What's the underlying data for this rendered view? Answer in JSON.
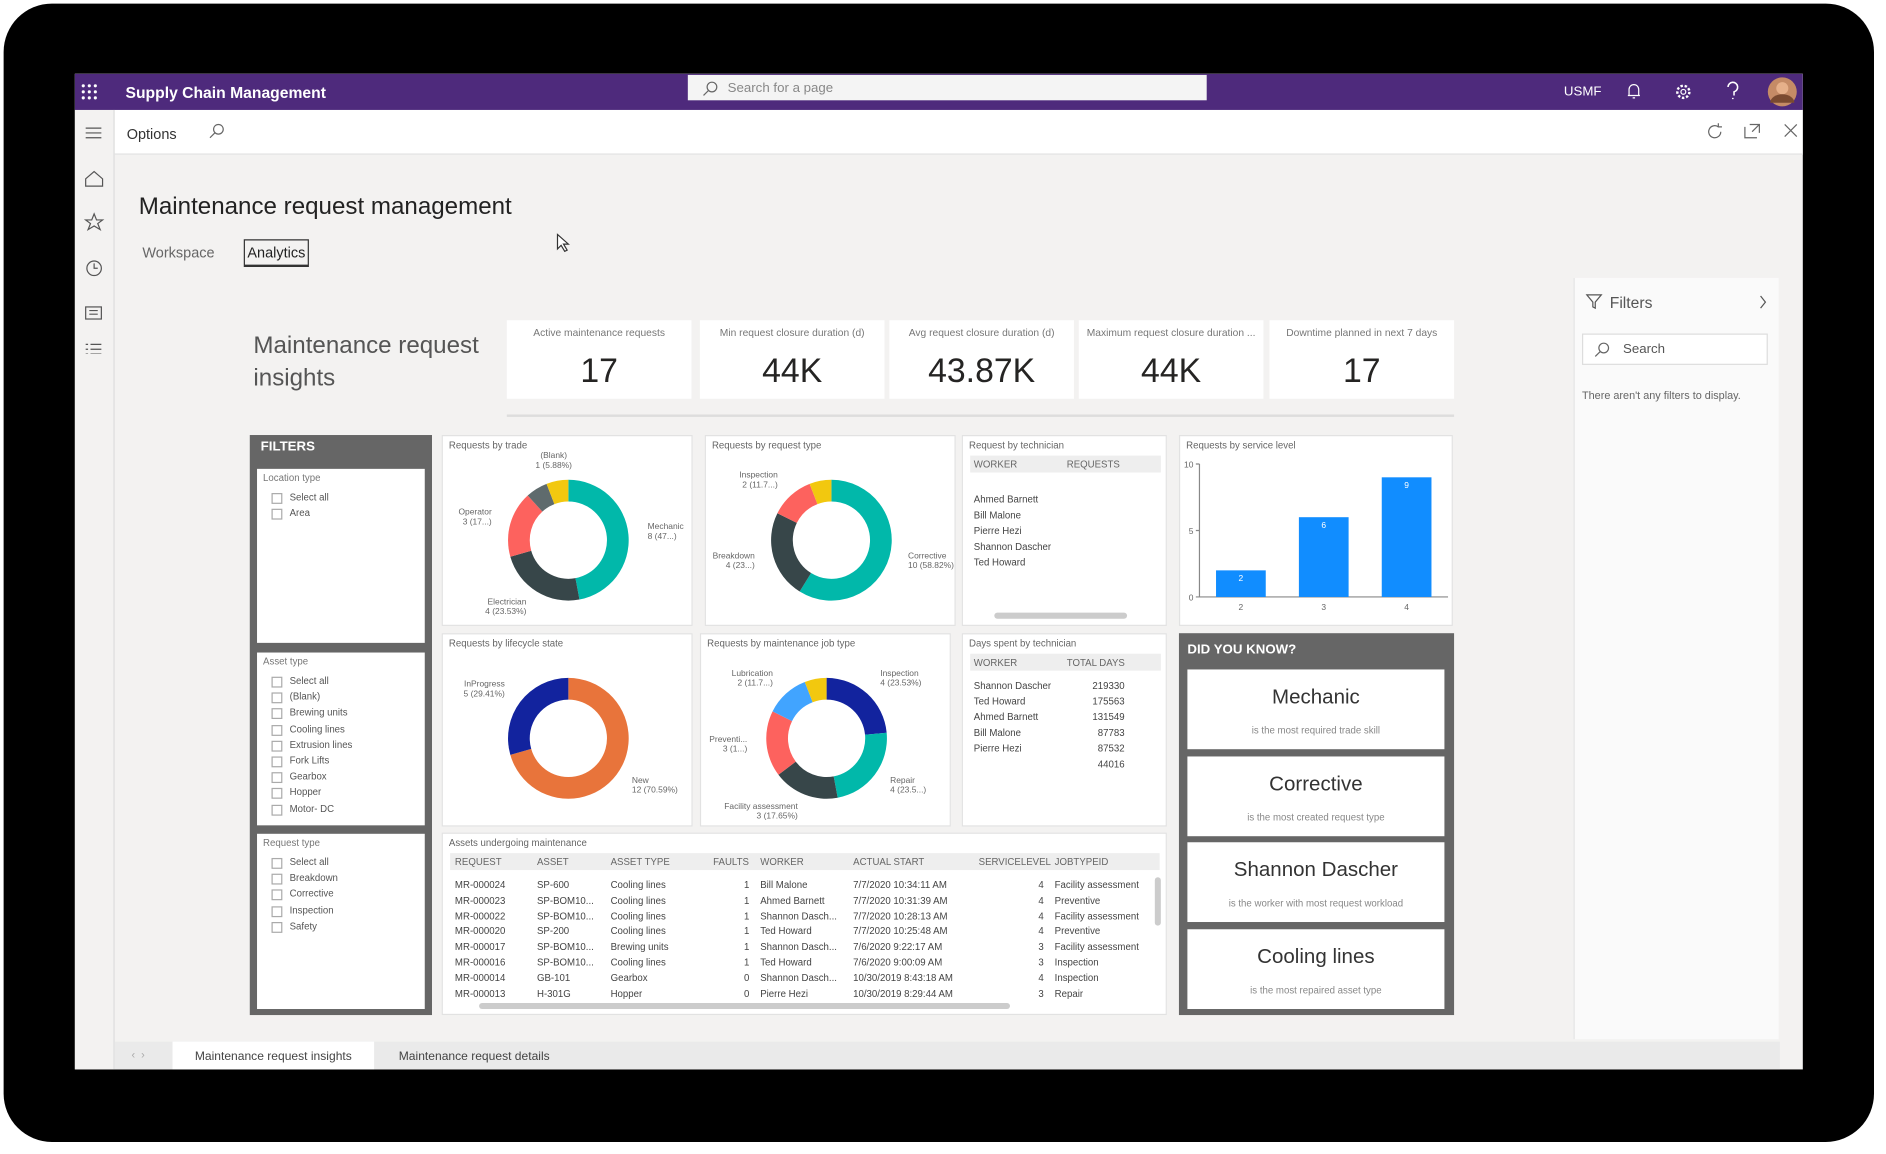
{
  "app": {
    "name": "Supply Chain Management",
    "search_placeholder": "Search for a page",
    "company": "USMF"
  },
  "toolbar": {
    "options": "Options"
  },
  "page": {
    "title": "Maintenance request management",
    "tabs": [
      "Workspace",
      "Analytics"
    ]
  },
  "filters_pane": {
    "title": "Filters",
    "search": "Search",
    "empty": "There aren't any filters to display."
  },
  "report": {
    "title": "Maintenance request insights",
    "kpis": [
      {
        "label": "Active maintenance requests",
        "value": "17"
      },
      {
        "label": "Min request closure duration (d)",
        "value": "44K"
      },
      {
        "label": "Avg request closure duration (d)",
        "value": "43.87K"
      },
      {
        "label": "Maximum request closure duration ...",
        "value": "44K"
      },
      {
        "label": "Downtime planned in next 7 days",
        "value": "17"
      }
    ],
    "slicers": {
      "title": "FILTERS",
      "groups": [
        {
          "title": "Location type",
          "options": [
            "Select all",
            "Area"
          ]
        },
        {
          "title": "Asset type",
          "options": [
            "Select all",
            "(Blank)",
            "Brewing units",
            "Cooling lines",
            "Extrusion lines",
            "Fork Lifts",
            "Gearbox",
            "Hopper",
            "Motor- DC"
          ]
        },
        {
          "title": "Request type",
          "options": [
            "Select all",
            "Breakdown",
            "Corrective",
            "Inspection",
            "Safety"
          ]
        }
      ]
    },
    "donuts": [
      {
        "type": "donut",
        "title": "Requests by trade",
        "segments": [
          {
            "name": "Mechanic",
            "label": "8 (47...)",
            "value": 8,
            "color": "#01b8aa"
          },
          {
            "name": "Electrician",
            "label": "4 (23.53%)",
            "value": 4,
            "color": "#374649"
          },
          {
            "name": "Operator",
            "label": "3 (17...)",
            "value": 3,
            "color": "#fd625e"
          },
          {
            "name": null,
            "label": null,
            "value": 1,
            "color": "#5f6b6d"
          },
          {
            "name": "(Blank)",
            "label": "1 (5.88%)",
            "value": 1,
            "color": "#f2c80f"
          }
        ]
      },
      {
        "type": "donut",
        "title": "Requests by request type",
        "segments": [
          {
            "name": "Corrective",
            "label": "10 (58.82%)",
            "value": 10,
            "color": "#01b8aa"
          },
          {
            "name": "Breakdown",
            "label": "4 (23...)",
            "value": 4,
            "color": "#374649"
          },
          {
            "name": "Inspection",
            "label": "2 (11.7...)",
            "value": 2,
            "color": "#fd625e"
          },
          {
            "name": null,
            "label": null,
            "value": 1,
            "color": "#f2c80f"
          }
        ]
      },
      {
        "type": "donut",
        "title": "Requests by lifecycle state",
        "segments": [
          {
            "name": "New",
            "label": "12 (70.59%)",
            "value": 12,
            "color": "#e8743b"
          },
          {
            "name": "InProgress",
            "label": "5 (29.41%)",
            "value": 5,
            "color": "#12239e"
          }
        ]
      },
      {
        "type": "donut",
        "title": "Requests by maintenance job type",
        "segments": [
          {
            "name": "Inspection",
            "label": "4 (23.53%)",
            "value": 4,
            "color": "#12239e"
          },
          {
            "name": "Repair",
            "label": "4 (23.5...)",
            "value": 4,
            "color": "#01b8aa"
          },
          {
            "name": "Facility assessment",
            "label": "3 (17.65%)",
            "value": 3,
            "color": "#374649"
          },
          {
            "name": "Preventi...",
            "label": "3 (1...)",
            "value": 3,
            "color": "#fd625e"
          },
          {
            "name": "Lubrication",
            "label": "2 (11.7...)",
            "value": 2,
            "color": "#41a4ff"
          },
          {
            "name": null,
            "label": null,
            "value": 1,
            "color": "#f2c80f"
          }
        ]
      }
    ],
    "technician_requests": {
      "title": "Request by technician",
      "columns": [
        "WORKER",
        "REQUESTS"
      ],
      "rows": [
        "Ahmed Barnett",
        "Bill Malone",
        "Pierre Hezi",
        "Shannon Dascher",
        "Ted Howard"
      ]
    },
    "service_level": {
      "type": "bar",
      "title": "Requests by service level",
      "categories": [
        "2",
        "3",
        "4"
      ],
      "values": [
        2,
        6,
        9
      ],
      "color": "#118dff",
      "ylim": [
        0,
        10
      ],
      "yticks": [
        0,
        5,
        10
      ]
    },
    "days_by_technician": {
      "title": "Days spent by technician",
      "columns": [
        "WORKER",
        "TOTAL DAYS"
      ],
      "rows": [
        [
          "Shannon Dascher",
          219330
        ],
        [
          "Ted Howard",
          175563
        ],
        [
          "Ahmed Barnett",
          131549
        ],
        [
          "Bill Malone",
          87783
        ],
        [
          "Pierre Hezi",
          87532
        ],
        [
          null,
          44016
        ]
      ]
    },
    "assets_table": {
      "title": "Assets undergoing maintenance",
      "columns": [
        "REQUEST",
        "ASSET",
        "ASSET TYPE",
        "FAULTS",
        "WORKER",
        "ACTUAL START",
        "SERVICELEVEL",
        "JOBTYPEID"
      ],
      "rows": [
        [
          "MR-000024",
          "SP-600",
          "Cooling lines",
          1,
          "Bill Malone",
          "7/7/2020 10:34:11 AM",
          4,
          "Facility assessment"
        ],
        [
          "MR-000023",
          "SP-BOM10...",
          "Cooling lines",
          1,
          "Ahmed Barnett",
          "7/7/2020 10:31:39 AM",
          4,
          "Preventive"
        ],
        [
          "MR-000022",
          "SP-BOM10...",
          "Cooling lines",
          1,
          "Shannon Dasch...",
          "7/7/2020 10:28:13 AM",
          4,
          "Facility assessment"
        ],
        [
          "MR-000020",
          "SP-200",
          "Cooling lines",
          1,
          "Ted Howard",
          "7/7/2020 10:25:48 AM",
          4,
          "Preventive"
        ],
        [
          "MR-000017",
          "SP-BOM10...",
          "Brewing units",
          1,
          "Shannon Dasch...",
          "7/6/2020 9:22:17 AM",
          3,
          "Facility assessment"
        ],
        [
          "MR-000016",
          "SP-BOM10...",
          "Cooling lines",
          1,
          "Ted Howard",
          "7/6/2020 9:00:09 AM",
          3,
          "Inspection"
        ],
        [
          "MR-000014",
          "GB-101",
          "Gearbox",
          0,
          "Shannon Dasch...",
          "10/30/2019 8:43:18 AM",
          4,
          "Inspection"
        ],
        [
          "MR-000013",
          "H-301G",
          "Hopper",
          0,
          "Pierre Hezi",
          "10/30/2019 8:29:44 AM",
          3,
          "Repair"
        ]
      ]
    },
    "did_you_know": {
      "title": "DID YOU KNOW?",
      "cards": [
        {
          "headline": "Mechanic",
          "caption": "is the most required trade skill"
        },
        {
          "headline": "Corrective",
          "caption": "is the most created request type"
        },
        {
          "headline": "Shannon Dascher",
          "caption": "is the worker with most request workload"
        },
        {
          "headline": "Cooling lines",
          "caption": "is the most repaired asset type"
        }
      ]
    }
  },
  "report_tabs": [
    "Maintenance request insights",
    "Maintenance request details"
  ]
}
